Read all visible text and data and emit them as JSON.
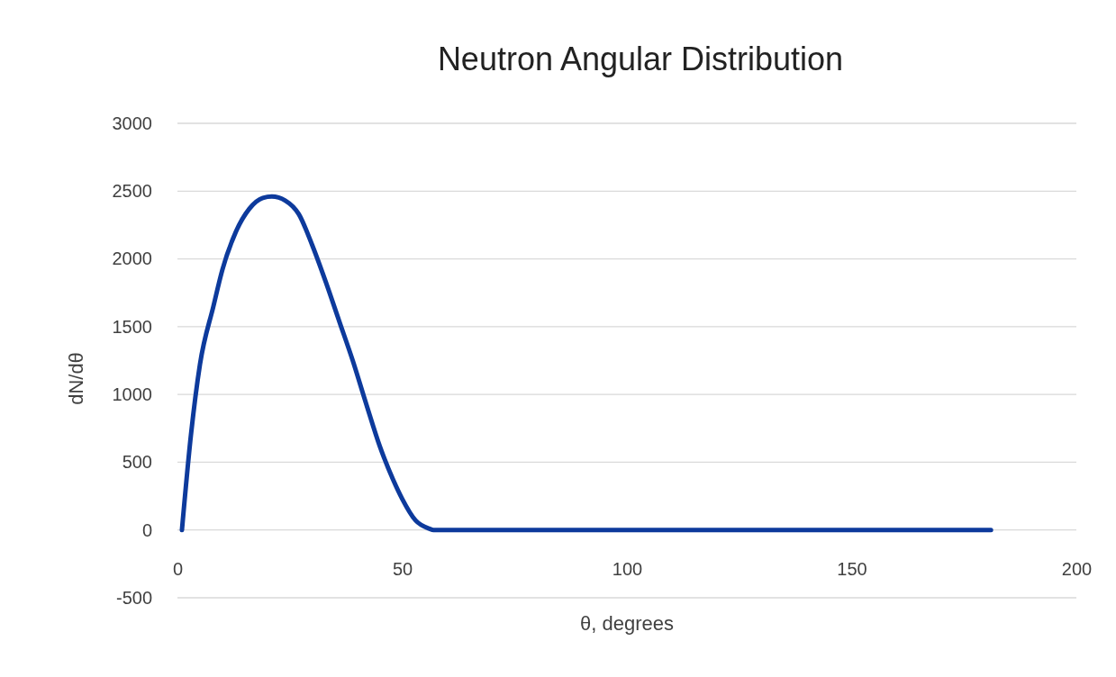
{
  "chart_data": {
    "type": "line",
    "title": "Neutron Angular Distribution",
    "xlabel": "θ, degrees",
    "ylabel": "dN/dθ",
    "x": [
      1,
      3,
      5,
      8,
      10,
      13,
      16,
      19,
      21,
      24,
      27,
      30,
      33,
      36,
      39,
      42,
      45,
      48,
      50,
      53,
      56,
      57,
      80,
      120,
      160,
      181
    ],
    "series": [
      {
        "color": "#0d3a9c",
        "values": [
          0,
          700,
          1220,
          1650,
          1920,
          2200,
          2370,
          2450,
          2460,
          2430,
          2330,
          2100,
          1830,
          1540,
          1250,
          930,
          620,
          370,
          230,
          70,
          10,
          0,
          0,
          0,
          0,
          0
        ]
      }
    ],
    "xlim": [
      0,
      200
    ],
    "xticks": [
      0,
      50,
      100,
      150,
      200
    ],
    "ylim": [
      -500,
      3000
    ],
    "yticks": [
      -500,
      0,
      500,
      1000,
      1500,
      2000,
      2500,
      3000
    ],
    "grid": "y",
    "marker": "none",
    "line_style": "solid"
  }
}
